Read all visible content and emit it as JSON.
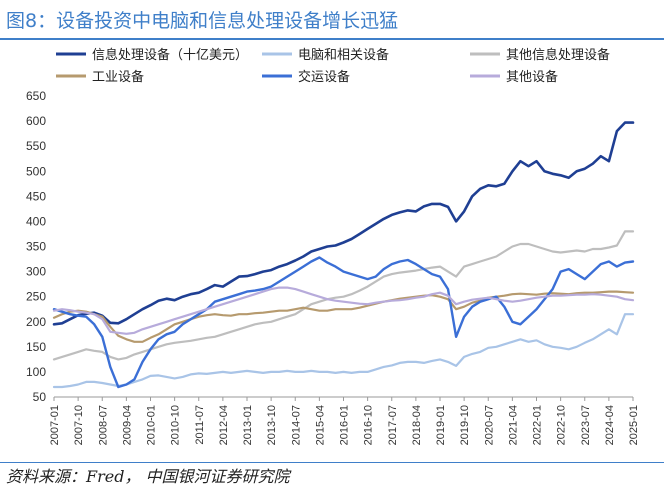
{
  "header": {
    "title": "图8：设备投资中电脑和信息处理设备增长迅猛"
  },
  "footer": {
    "source": "资料来源：Fred，  中国银河证券研究院"
  },
  "chart_data": {
    "type": "line",
    "title": "",
    "xlabel": "",
    "ylabel": "",
    "ylim": [
      50,
      650
    ],
    "yticks": [
      "50",
      "100",
      "150",
      "200",
      "250",
      "300",
      "350",
      "400",
      "450",
      "500",
      "550",
      "600",
      "650"
    ],
    "xticks": [
      "2007-01",
      "2007-10",
      "2008-07",
      "2009-04",
      "2010-01",
      "2010-10",
      "2011-07",
      "2012-04",
      "2013-01",
      "2013-10",
      "2014-07",
      "2015-04",
      "2016-01",
      "2016-10",
      "2017-07",
      "2018-04",
      "2019-01",
      "2019-10",
      "2020-07",
      "2021-04",
      "2022-01",
      "2022-10",
      "2023-07",
      "2024-04",
      "2025-01"
    ],
    "x": [
      2007.0,
      2007.25,
      2007.5,
      2007.75,
      2008.0,
      2008.25,
      2008.5,
      2008.75,
      2009.0,
      2009.25,
      2009.5,
      2009.75,
      2010.0,
      2010.25,
      2010.5,
      2010.75,
      2011.0,
      2011.25,
      2011.5,
      2011.75,
      2012.0,
      2012.25,
      2012.5,
      2012.75,
      2013.0,
      2013.25,
      2013.5,
      2013.75,
      2014.0,
      2014.25,
      2014.5,
      2014.75,
      2015.0,
      2015.25,
      2015.5,
      2015.75,
      2016.0,
      2016.25,
      2016.5,
      2016.75,
      2017.0,
      2017.25,
      2017.5,
      2017.75,
      2018.0,
      2018.25,
      2018.5,
      2018.75,
      2019.0,
      2019.25,
      2019.5,
      2019.75,
      2020.0,
      2020.25,
      2020.5,
      2020.75,
      2021.0,
      2021.25,
      2021.5,
      2021.75,
      2022.0,
      2022.25,
      2022.5,
      2022.75,
      2023.0,
      2023.25,
      2023.5,
      2023.75,
      2024.0,
      2024.25,
      2024.5,
      2024.75,
      2025.0
    ],
    "legend_position": "top",
    "series": [
      {
        "name": "信息处理设备（十亿美元）",
        "color": "#1F3F93",
        "width": 2.6,
        "values": [
          195,
          197,
          205,
          213,
          216,
          218,
          212,
          198,
          197,
          205,
          215,
          225,
          233,
          242,
          246,
          243,
          250,
          255,
          258,
          265,
          273,
          270,
          280,
          290,
          291,
          295,
          300,
          303,
          310,
          315,
          322,
          330,
          340,
          345,
          350,
          352,
          358,
          365,
          375,
          385,
          395,
          405,
          413,
          418,
          422,
          420,
          430,
          435,
          435,
          429,
          400,
          420,
          450,
          465,
          472,
          470,
          475,
          500,
          520,
          510,
          520,
          500,
          495,
          492,
          487,
          500,
          505,
          515,
          530,
          520,
          580,
          597,
          597
        ]
      },
      {
        "name": "电脑和相关设备",
        "color": "#A9C4E7",
        "width": 2.2,
        "values": [
          70,
          70,
          72,
          75,
          80,
          80,
          78,
          75,
          72,
          75,
          80,
          85,
          92,
          93,
          90,
          87,
          90,
          95,
          97,
          96,
          98,
          100,
          98,
          100,
          102,
          100,
          98,
          100,
          100,
          102,
          100,
          100,
          102,
          100,
          100,
          98,
          100,
          98,
          100,
          100,
          105,
          110,
          113,
          118,
          120,
          120,
          118,
          122,
          125,
          120,
          112,
          130,
          136,
          140,
          148,
          150,
          155,
          160,
          165,
          160,
          163,
          155,
          150,
          148,
          145,
          150,
          158,
          165,
          175,
          185,
          175,
          215,
          215
        ]
      },
      {
        "name": "其他信息处理设备",
        "color": "#BEBEBE",
        "width": 2.2,
        "values": [
          125,
          130,
          135,
          140,
          145,
          142,
          140,
          130,
          125,
          128,
          135,
          140,
          145,
          150,
          155,
          158,
          160,
          162,
          165,
          168,
          170,
          175,
          180,
          185,
          190,
          195,
          198,
          200,
          205,
          210,
          215,
          225,
          235,
          240,
          245,
          248,
          250,
          255,
          262,
          270,
          280,
          290,
          295,
          298,
          300,
          302,
          305,
          308,
          310,
          300,
          290,
          310,
          315,
          320,
          325,
          330,
          340,
          350,
          355,
          355,
          350,
          345,
          340,
          338,
          340,
          342,
          340,
          345,
          345,
          348,
          352,
          380,
          380
        ]
      },
      {
        "name": "工业设备",
        "color": "#B69A6E",
        "width": 2.2,
        "values": [
          208,
          215,
          220,
          222,
          220,
          215,
          210,
          190,
          172,
          165,
          160,
          160,
          168,
          175,
          185,
          195,
          200,
          205,
          210,
          213,
          215,
          213,
          212,
          215,
          215,
          217,
          218,
          220,
          222,
          222,
          225,
          228,
          225,
          222,
          222,
          225,
          225,
          225,
          228,
          232,
          236,
          240,
          243,
          246,
          248,
          250,
          252,
          253,
          250,
          245,
          225,
          230,
          238,
          242,
          248,
          250,
          252,
          255,
          256,
          255,
          254,
          256,
          257,
          256,
          255,
          257,
          258,
          258,
          259,
          260,
          260,
          259,
          258
        ]
      },
      {
        "name": "交运设备",
        "color": "#3B6FD6",
        "width": 2.4,
        "values": [
          225,
          220,
          215,
          212,
          210,
          195,
          170,
          110,
          70,
          75,
          85,
          120,
          145,
          165,
          175,
          180,
          195,
          205,
          215,
          225,
          240,
          245,
          250,
          255,
          260,
          262,
          265,
          270,
          280,
          290,
          300,
          310,
          320,
          328,
          318,
          310,
          300,
          295,
          290,
          285,
          290,
          305,
          315,
          320,
          323,
          315,
          305,
          295,
          290,
          265,
          170,
          210,
          230,
          240,
          245,
          250,
          230,
          200,
          195,
          210,
          225,
          245,
          265,
          300,
          305,
          295,
          285,
          300,
          315,
          320,
          310,
          318,
          320
        ]
      },
      {
        "name": "其他设备",
        "color": "#B7ABDB",
        "width": 2.2,
        "values": [
          222,
          225,
          223,
          220,
          218,
          215,
          205,
          180,
          178,
          176,
          178,
          185,
          190,
          195,
          200,
          205,
          210,
          215,
          220,
          225,
          230,
          235,
          240,
          245,
          250,
          255,
          260,
          265,
          268,
          268,
          265,
          260,
          255,
          250,
          245,
          242,
          240,
          238,
          236,
          235,
          238,
          240,
          242,
          243,
          245,
          248,
          250,
          255,
          258,
          252,
          235,
          240,
          244,
          246,
          248,
          245,
          242,
          240,
          242,
          245,
          248,
          250,
          252,
          252,
          253,
          254,
          254,
          255,
          254,
          252,
          250,
          245,
          243
        ]
      }
    ]
  }
}
